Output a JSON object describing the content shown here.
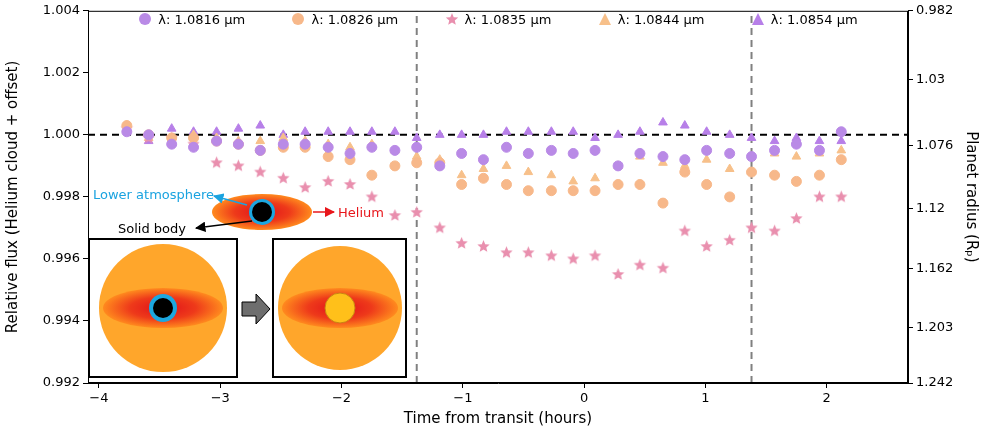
{
  "chart_data": {
    "type": "scatter",
    "x_label": "Time from transit (hours)",
    "y_label": "Relative flux (Helium cloud + offset)",
    "y2_label": "Planet radius (Rₚ)",
    "xlim": [
      -4.09,
      2.67
    ],
    "xticks": [
      {
        "value": -4,
        "label": "−4"
      },
      {
        "value": -3,
        "label": "−3"
      },
      {
        "value": -2,
        "label": "−2"
      },
      {
        "value": -1,
        "label": "−1"
      },
      0,
      1,
      2
    ],
    "ylim": [
      0.992,
      1.004
    ],
    "yticks": [
      {
        "value": 0.992,
        "label": "0.992"
      },
      {
        "value": 0.994,
        "label": "0.994"
      },
      {
        "value": 0.996,
        "label": "0.996"
      },
      {
        "value": 0.998,
        "label": "0.998"
      },
      {
        "value": 1.0,
        "label": "1.000"
      },
      {
        "value": 1.002,
        "label": "1.002"
      },
      {
        "value": 1.004,
        "label": "1.004"
      }
    ],
    "y2lim": [
      1.242,
      0.982
    ],
    "y2ticks": [
      0.982,
      1.03,
      1.076,
      1.12,
      1.162,
      1.203,
      1.242
    ],
    "grid": false,
    "legend": "top",
    "x": [
      -3.77,
      -3.59,
      -3.4,
      -3.22,
      -3.03,
      -2.85,
      -2.67,
      -2.48,
      -2.3,
      -2.11,
      -1.93,
      -1.75,
      -1.56,
      -1.38,
      -1.19,
      -1.01,
      -0.83,
      -0.64,
      -0.46,
      -0.27,
      -0.09,
      0.09,
      0.28,
      0.46,
      0.65,
      0.83,
      1.01,
      1.2,
      1.38,
      1.57,
      1.75,
      1.94,
      2.12
    ],
    "series": [
      {
        "name": "λ: 1.0816 µm",
        "color": "#b98ae6",
        "marker": "circle",
        "values": [
          1.0001,
          1.0,
          0.9997,
          0.9996,
          0.9998,
          0.9997,
          0.9995,
          0.9997,
          0.9997,
          0.9996,
          0.9994,
          0.9996,
          0.9995,
          0.9996,
          0.999,
          0.9994,
          0.9992,
          0.9996,
          0.9994,
          0.9995,
          0.9994,
          0.9995,
          0.999,
          0.9994,
          0.9993,
          0.9992,
          0.9995,
          0.9994,
          0.9993,
          0.9995,
          0.9997,
          0.9995,
          1.0001
        ]
      },
      {
        "name": "λ: 1.0826 µm",
        "color": "#f7b88a",
        "marker": "circle",
        "values": [
          1.0003,
          1.0,
          0.9999,
          0.9999,
          0.9998,
          0.9997,
          0.9995,
          0.9996,
          0.9996,
          0.9993,
          0.9992,
          0.9987,
          0.999,
          0.9991,
          0.9991,
          0.9984,
          0.9986,
          0.9984,
          0.9982,
          0.9982,
          0.9982,
          0.9982,
          0.9984,
          0.9984,
          0.9978,
          0.9988,
          0.9984,
          0.998,
          0.9988,
          0.9987,
          0.9985,
          0.9987,
          0.9992
        ]
      },
      {
        "name": "λ: 1.0835 µm",
        "color": "#e98fae",
        "marker": "star",
        "values": [
          1.0002,
          0.9999,
          0.9999,
          0.9997,
          0.9991,
          0.999,
          0.9988,
          0.9986,
          0.9983,
          0.9985,
          0.9984,
          0.998,
          0.9974,
          0.9975,
          0.997,
          0.9965,
          0.9964,
          0.9962,
          0.9962,
          0.9961,
          0.996,
          0.9961,
          0.9955,
          0.9958,
          0.9957,
          0.9969,
          0.9964,
          0.9966,
          0.997,
          0.9969,
          0.9973,
          0.998,
          0.998
        ]
      },
      {
        "name": "λ: 1.0844 µm",
        "color": "#f7c08a",
        "marker": "triangle",
        "values": [
          1.0003,
          0.9999,
          0.9998,
          1.0,
          0.9999,
          0.9998,
          0.9998,
          0.9999,
          0.9998,
          0.9997,
          0.9996,
          0.9997,
          0.9995,
          0.9993,
          0.9992,
          0.9987,
          0.9989,
          0.999,
          0.9988,
          0.9987,
          0.9985,
          0.9986,
          0.999,
          0.9993,
          0.9991,
          0.999,
          0.9992,
          0.9989,
          0.9988,
          0.9994,
          0.9993,
          0.9994,
          0.9995
        ]
      },
      {
        "name": "λ: 1.0854 µm",
        "color": "#b77fe8",
        "marker": "triangle",
        "values": [
          1.0002,
          0.9998,
          1.0002,
          1.0001,
          1.0001,
          1.0002,
          1.0003,
          1.0,
          1.0001,
          1.0001,
          1.0001,
          1.0001,
          1.0001,
          0.9999,
          1.0,
          1.0,
          1.0,
          1.0001,
          1.0001,
          1.0001,
          1.0001,
          0.9999,
          1.0,
          1.0001,
          1.0004,
          1.0003,
          1.0001,
          1.0,
          0.9999,
          0.9998,
          0.9999,
          0.9998,
          0.9998
        ]
      }
    ],
    "hlines": [
      {
        "y": 1.0,
        "color": "#000000",
        "line_style": "dashed"
      }
    ],
    "vlines": [
      {
        "x": -1.38,
        "color": "#808080",
        "line_style": "dashed"
      },
      {
        "x": 1.38,
        "color": "#808080",
        "line_style": "dashed"
      }
    ],
    "annotations": {
      "lower_atmosphere": "Lower atmosphere",
      "solid_body": "Solid body",
      "helium": "Helium"
    }
  }
}
